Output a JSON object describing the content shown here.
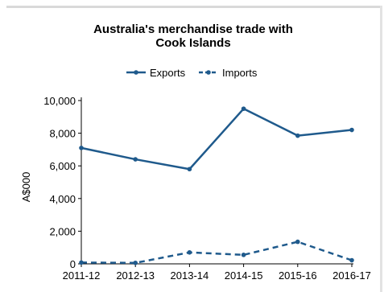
{
  "chart_data": {
    "type": "line",
    "title": "Australia's merchandise trade with Cook Islands",
    "xlabel": "",
    "ylabel": "A$000",
    "categories": [
      "2011-12",
      "2012-13",
      "2013-14",
      "2014-15",
      "2015-16",
      "2016-17"
    ],
    "ylim": [
      0,
      10000
    ],
    "yticks": [
      0,
      2000,
      4000,
      6000,
      8000,
      10000
    ],
    "ytick_labels": [
      "0",
      "2,000",
      "4,000",
      "6,000",
      "8,000",
      "10,000"
    ],
    "grid": false,
    "legend_position": "top",
    "series": [
      {
        "name": "Exports",
        "style": "solid",
        "color": "#1f5a8c",
        "values": [
          7100,
          6400,
          5800,
          9500,
          7850,
          8200
        ]
      },
      {
        "name": "Imports",
        "style": "dashed",
        "color": "#1f5a8c",
        "values": [
          80,
          60,
          700,
          550,
          1350,
          220
        ]
      }
    ]
  }
}
